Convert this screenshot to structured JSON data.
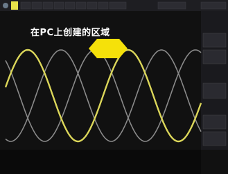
{
  "overlay": {
    "label": "在PC上创建的区域"
  }
}
